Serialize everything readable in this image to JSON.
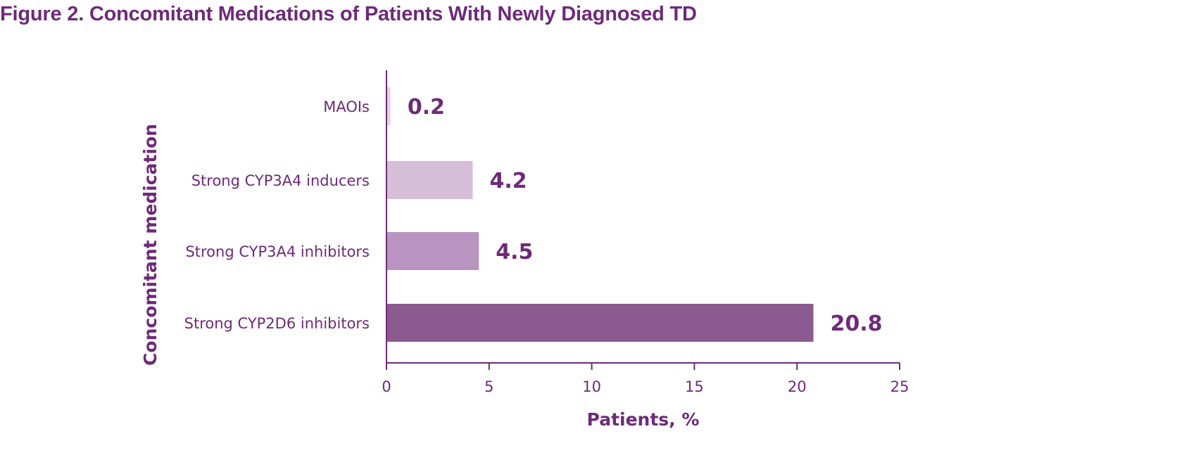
{
  "chart_data": {
    "type": "bar",
    "orientation": "horizontal",
    "title": "Figure 2. Concomitant Medications of Patients With Newly Diagnosed TD",
    "xlabel": "Patients, %",
    "ylabel": "Concomitant medication",
    "xlim": [
      0,
      25
    ],
    "xticks": [
      0,
      5,
      10,
      15,
      20,
      25
    ],
    "categories": [
      "MAOIs",
      "Strong CYP3A4 inducers",
      "Strong CYP3A4 inhibitors",
      "Strong CYP2D6 inhibitors"
    ],
    "values": [
      0.2,
      4.2,
      4.5,
      20.8
    ],
    "value_labels": [
      "0.2",
      "4.2",
      "4.5",
      "20.8"
    ],
    "bar_colors": [
      "#e4d4e6",
      "#d6bdd8",
      "#b994c0",
      "#8b5a8f"
    ],
    "grid": false,
    "legend": "none"
  },
  "colors": {
    "text": "#6e2a78",
    "axis": "#6e2a78"
  }
}
